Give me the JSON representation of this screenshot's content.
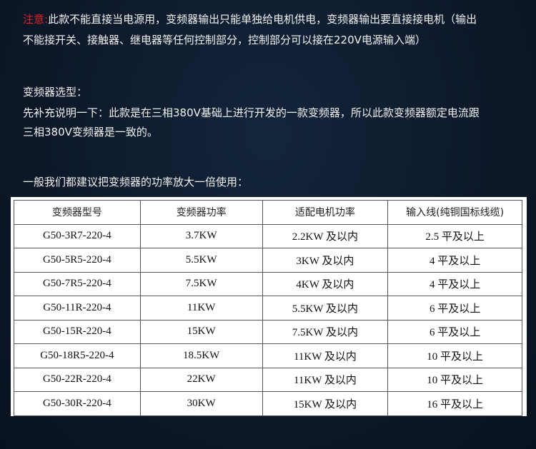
{
  "notice": {
    "label": "注意:",
    "line1": "此款不能直接当电源用，变频器输出只能单独给电机供电，变频器输出要直接接电机（输出",
    "line2": "不能接开关、接触器、继电器等任何控制部分，控制部分可以接在220V电源输入端）"
  },
  "selection": {
    "title": "变频器选型：",
    "line1": "先补充说明一下：此款是在三相380V基础上进行开发的一款变频器，所以此款变频器额定电流跟",
    "line2": "三相380V变频器是一致的。"
  },
  "recommendation": "一般我们都建议把变频器的功率放大一倍使用：",
  "table": {
    "headers": [
      "变频器型号",
      "变频器功率",
      "适配电机功率",
      "输入线(纯铜国标线缆)"
    ],
    "rows": [
      [
        "G50-3R7-220-4",
        "3.7KW",
        "2.2KW 及以内",
        "2.5 平及以上"
      ],
      [
        "G50-5R5-220-4",
        "5.5KW",
        "3KW 及以内",
        "4 平及以上"
      ],
      [
        "G50-7R5-220-4",
        "7.5KW",
        "4KW 及以内",
        "4 平及以上"
      ],
      [
        "G50-11R-220-4",
        "11KW",
        "5.5KW 及以内",
        "6 平及以上"
      ],
      [
        "G50-15R-220-4",
        "15KW",
        "7.5KW 及以内",
        "6 平及以上"
      ],
      [
        "G50-18R5-220-4",
        "18.5KW",
        "11KW 及以内",
        "10 平及以上"
      ],
      [
        "G50-22R-220-4",
        "22KW",
        "11KW 及以内",
        "10 平及以上"
      ],
      [
        "G50-30R-220-4",
        "30KW",
        "15KW 及以内",
        "16 平及以上"
      ]
    ]
  }
}
